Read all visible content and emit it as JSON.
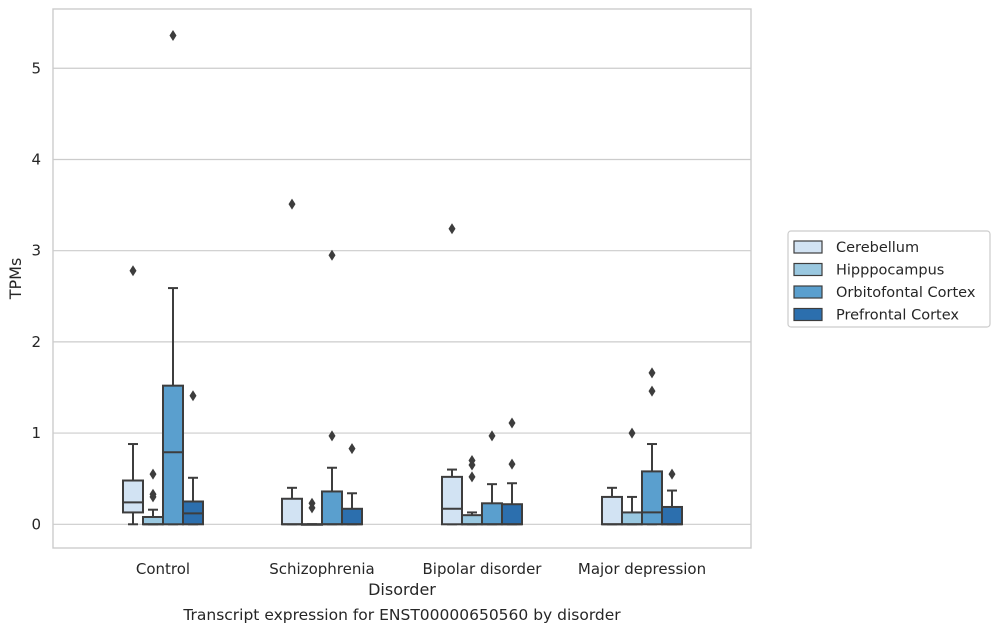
{
  "caption": "Transcript expression for ENST00000650560 by disorder",
  "colors": {
    "Cerebellum": "#d2e3f3",
    "Hipppocampus": "#9ac8e0",
    "Orbitofontal Cortex": "#5a9fce",
    "Prefrontal Cortex": "#2c6fae",
    "box_edge": "#3d3d3d",
    "grid": "#cccccc",
    "frame": "#cccccc"
  },
  "chart_data": {
    "type": "box",
    "xlabel": "Disorder",
    "ylabel": "TPMs",
    "ylim": [
      -0.26,
      5.65
    ],
    "yticks": [
      0,
      1,
      2,
      3,
      4,
      5
    ],
    "grid": true,
    "legend_position": "right",
    "categories": [
      "Control",
      "Schizophrenia",
      "Bipolar disorder",
      "Major depression"
    ],
    "series": [
      {
        "name": "Cerebellum",
        "boxes": [
          {
            "whislo": 0.0,
            "q1": 0.13,
            "med": 0.24,
            "q3": 0.48,
            "whishi": 0.88,
            "fliers": [
              2.78
            ]
          },
          {
            "whislo": 0.0,
            "q1": 0.0,
            "med": 0.0,
            "q3": 0.28,
            "whishi": 0.4,
            "fliers": [
              3.51
            ]
          },
          {
            "whislo": 0.0,
            "q1": 0.0,
            "med": 0.17,
            "q3": 0.52,
            "whishi": 0.6,
            "fliers": [
              3.24
            ]
          },
          {
            "whislo": 0.0,
            "q1": 0.0,
            "med": 0.0,
            "q3": 0.3,
            "whishi": 0.4,
            "fliers": []
          }
        ]
      },
      {
        "name": "Hipppocampus",
        "boxes": [
          {
            "whislo": 0.0,
            "q1": 0.0,
            "med": 0.0,
            "q3": 0.08,
            "whishi": 0.16,
            "fliers": [
              0.55,
              0.33,
              0.3
            ]
          },
          {
            "whislo": 0.0,
            "q1": 0.0,
            "med": 0.0,
            "q3": 0.0,
            "whishi": 0.0,
            "fliers": [
              0.23,
              0.18
            ]
          },
          {
            "whislo": 0.0,
            "q1": 0.0,
            "med": 0.0,
            "q3": 0.1,
            "whishi": 0.13,
            "fliers": [
              0.7,
              0.65,
              0.52
            ]
          },
          {
            "whislo": 0.0,
            "q1": 0.0,
            "med": 0.0,
            "q3": 0.13,
            "whishi": 0.3,
            "fliers": [
              1.0
            ]
          }
        ]
      },
      {
        "name": "Orbitofontal Cortex",
        "boxes": [
          {
            "whislo": 0.0,
            "q1": 0.0,
            "med": 0.79,
            "q3": 1.52,
            "whishi": 2.59,
            "fliers": [
              5.36
            ]
          },
          {
            "whislo": 0.0,
            "q1": 0.0,
            "med": 0.0,
            "q3": 0.36,
            "whishi": 0.62,
            "fliers": [
              2.95,
              0.97
            ]
          },
          {
            "whislo": 0.0,
            "q1": 0.0,
            "med": 0.0,
            "q3": 0.23,
            "whishi": 0.44,
            "fliers": [
              0.97
            ]
          },
          {
            "whislo": 0.0,
            "q1": 0.0,
            "med": 0.13,
            "q3": 0.58,
            "whishi": 0.88,
            "fliers": [
              1.66,
              1.46
            ]
          }
        ]
      },
      {
        "name": "Prefrontal Cortex",
        "boxes": [
          {
            "whislo": 0.0,
            "q1": 0.0,
            "med": 0.12,
            "q3": 0.25,
            "whishi": 0.51,
            "fliers": [
              1.41
            ]
          },
          {
            "whislo": 0.0,
            "q1": 0.0,
            "med": 0.0,
            "q3": 0.17,
            "whishi": 0.34,
            "fliers": [
              0.83
            ]
          },
          {
            "whislo": 0.0,
            "q1": 0.0,
            "med": 0.0,
            "q3": 0.22,
            "whishi": 0.45,
            "fliers": [
              1.11,
              0.66
            ]
          },
          {
            "whislo": 0.0,
            "q1": 0.0,
            "med": 0.0,
            "q3": 0.19,
            "whishi": 0.37,
            "fliers": [
              0.55
            ]
          }
        ]
      }
    ]
  }
}
